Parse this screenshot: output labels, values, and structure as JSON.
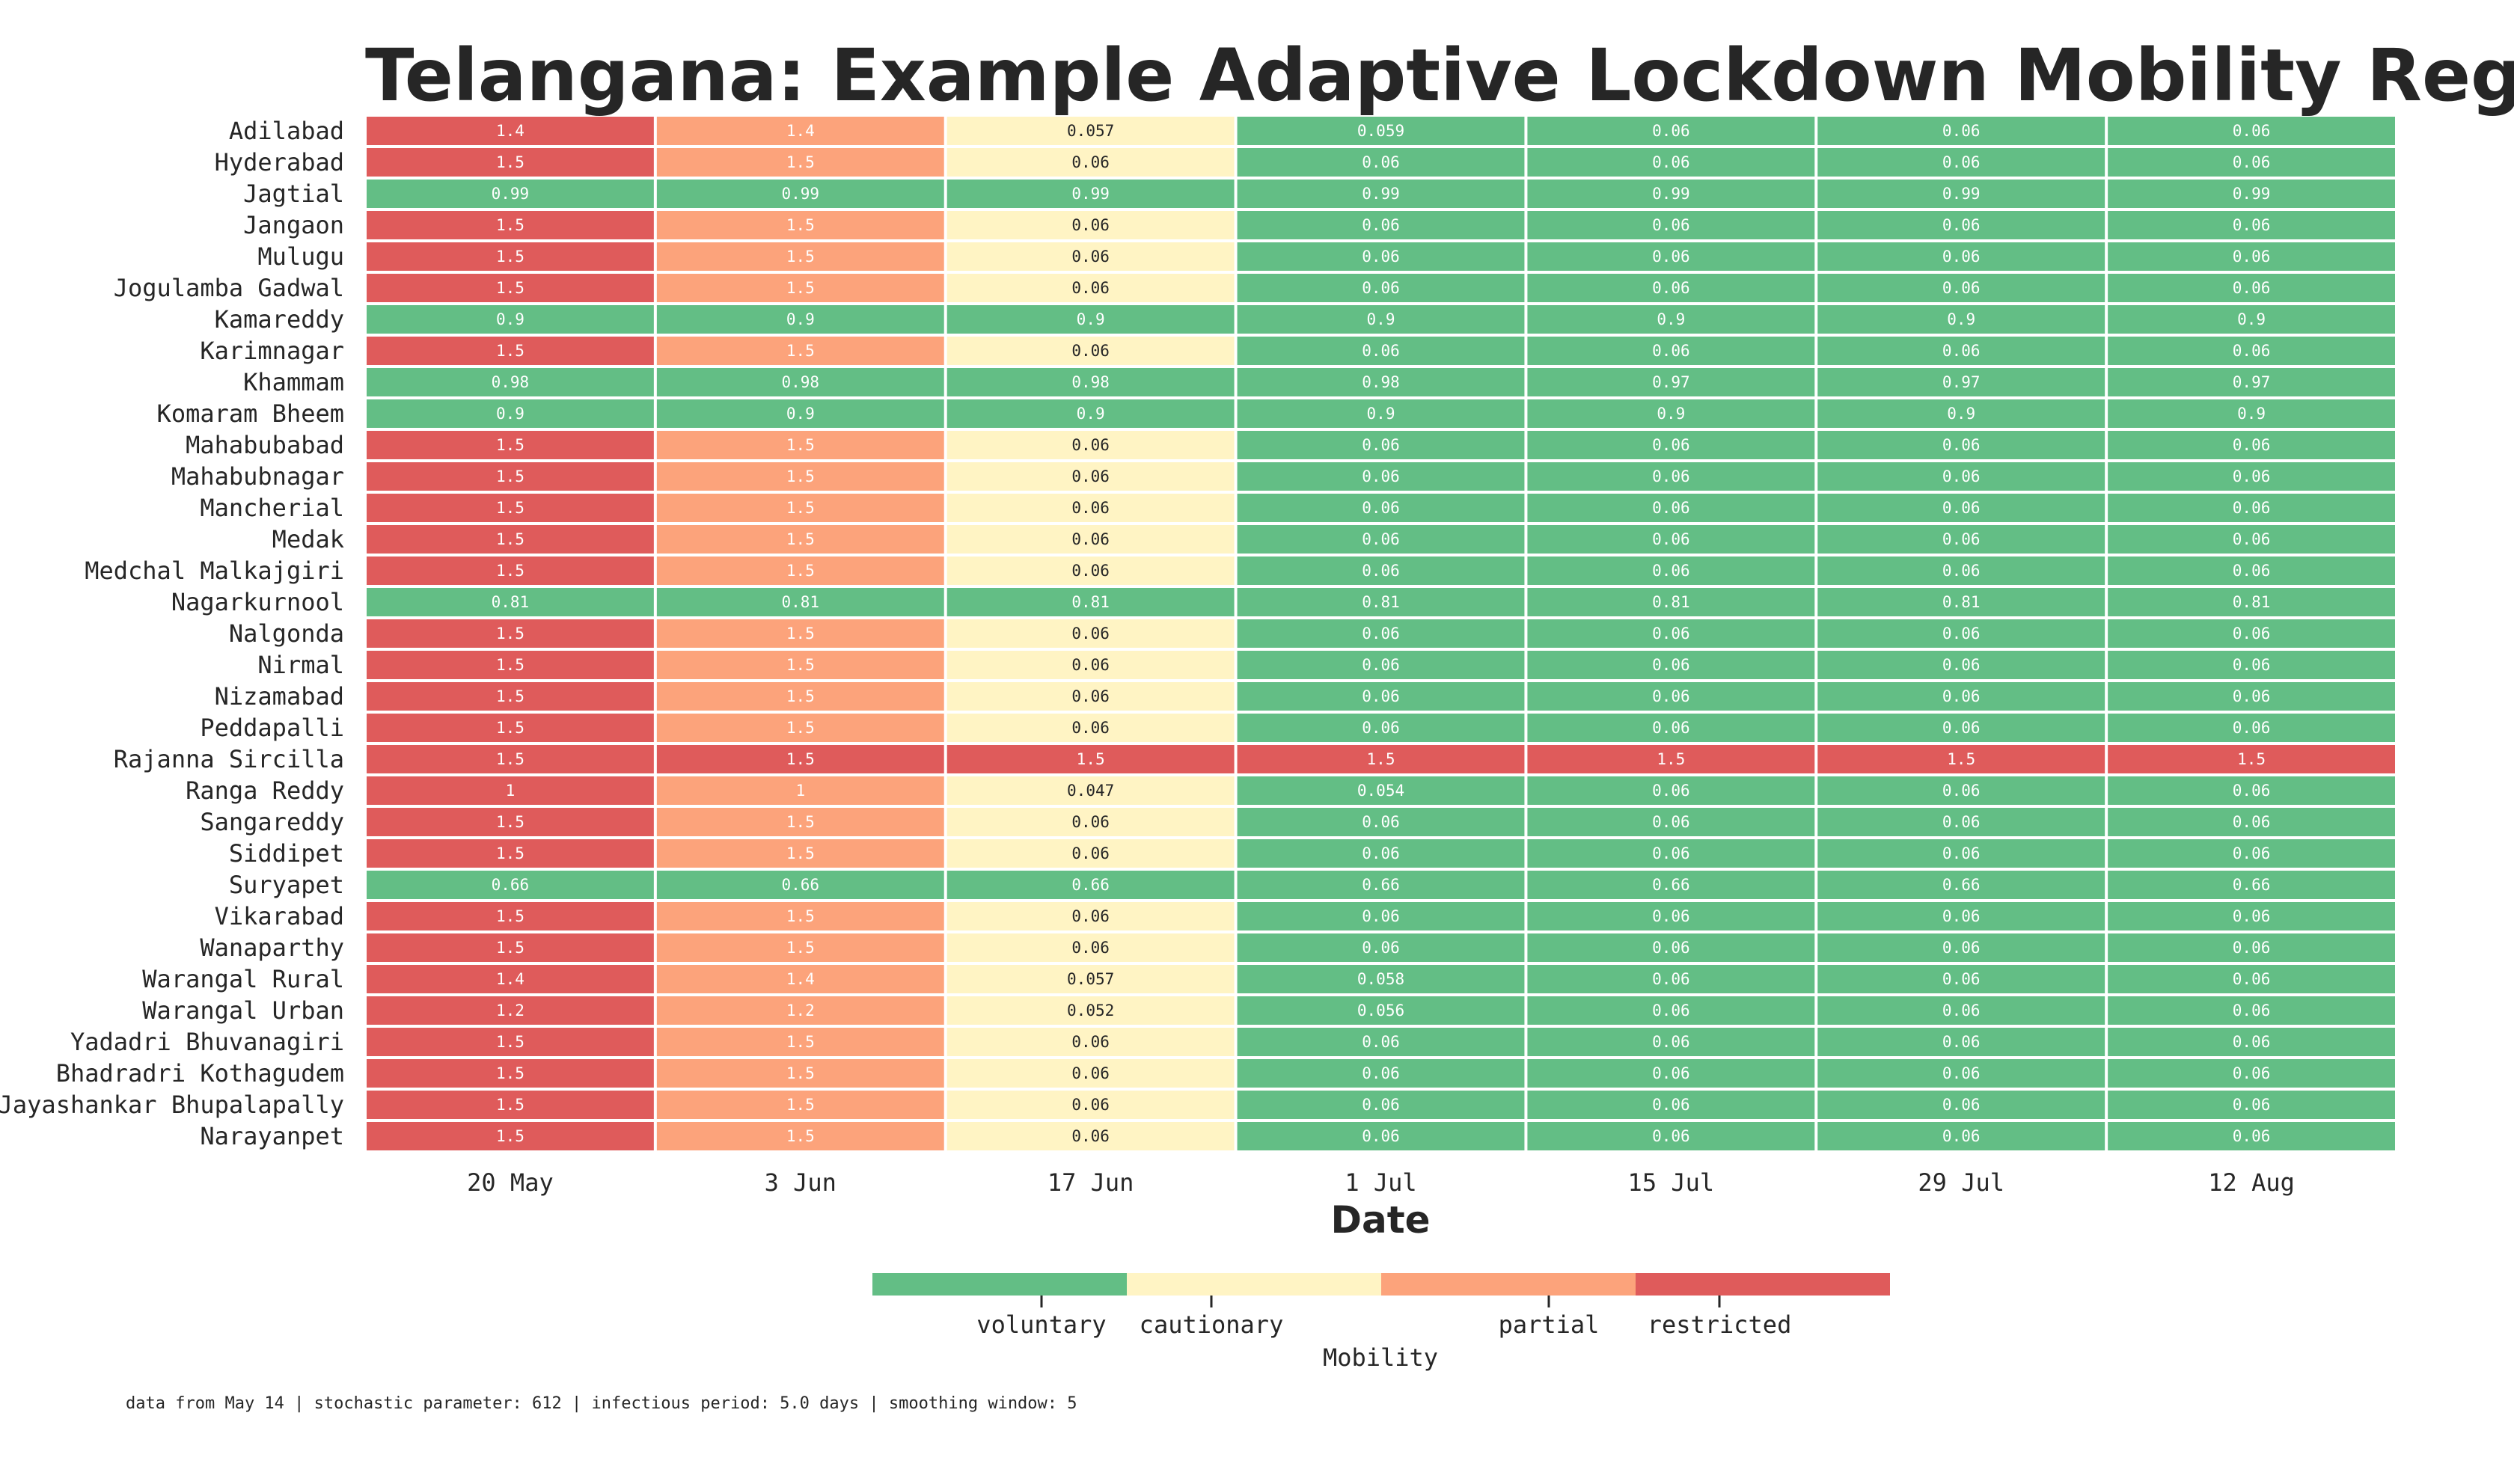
{
  "chart_data": {
    "type": "heatmap",
    "title": "Telangana: Example Adaptive Lockdown Mobility Regime Scenario",
    "xlabel": "Date",
    "dates": [
      "20 May",
      "3 Jun",
      "17 Jun",
      "1 Jul",
      "15 Jul",
      "29 Jul",
      "12 Aug"
    ],
    "districts": [
      "Adilabad",
      "Hyderabad",
      "Jagtial",
      "Jangaon",
      "Mulugu",
      "Jogulamba Gadwal",
      "Kamareddy",
      "Karimnagar",
      "Khammam",
      "Komaram Bheem",
      "Mahabubabad",
      "Mahabubnagar",
      "Mancherial",
      "Medak",
      "Medchal Malkajgiri",
      "Nagarkurnool",
      "Nalgonda",
      "Nirmal",
      "Nizamabad",
      "Peddapalli",
      "Rajanna Sircilla",
      "Ranga Reddy",
      "Sangareddy",
      "Siddipet",
      "Suryapet",
      "Vikarabad",
      "Wanaparthy",
      "Warangal Rural",
      "Warangal Urban",
      "Yadadri Bhuvanagiri",
      "Bhadradri Kothagudem",
      "Jayashankar Bhupalapally",
      "Narayanpet"
    ],
    "values": [
      [
        "1.4",
        "1.4",
        "0.057",
        "0.059",
        "0.06",
        "0.06",
        "0.06"
      ],
      [
        "1.5",
        "1.5",
        "0.06",
        "0.06",
        "0.06",
        "0.06",
        "0.06"
      ],
      [
        "0.99",
        "0.99",
        "0.99",
        "0.99",
        "0.99",
        "0.99",
        "0.99"
      ],
      [
        "1.5",
        "1.5",
        "0.06",
        "0.06",
        "0.06",
        "0.06",
        "0.06"
      ],
      [
        "1.5",
        "1.5",
        "0.06",
        "0.06",
        "0.06",
        "0.06",
        "0.06"
      ],
      [
        "1.5",
        "1.5",
        "0.06",
        "0.06",
        "0.06",
        "0.06",
        "0.06"
      ],
      [
        "0.9",
        "0.9",
        "0.9",
        "0.9",
        "0.9",
        "0.9",
        "0.9"
      ],
      [
        "1.5",
        "1.5",
        "0.06",
        "0.06",
        "0.06",
        "0.06",
        "0.06"
      ],
      [
        "0.98",
        "0.98",
        "0.98",
        "0.98",
        "0.97",
        "0.97",
        "0.97"
      ],
      [
        "0.9",
        "0.9",
        "0.9",
        "0.9",
        "0.9",
        "0.9",
        "0.9"
      ],
      [
        "1.5",
        "1.5",
        "0.06",
        "0.06",
        "0.06",
        "0.06",
        "0.06"
      ],
      [
        "1.5",
        "1.5",
        "0.06",
        "0.06",
        "0.06",
        "0.06",
        "0.06"
      ],
      [
        "1.5",
        "1.5",
        "0.06",
        "0.06",
        "0.06",
        "0.06",
        "0.06"
      ],
      [
        "1.5",
        "1.5",
        "0.06",
        "0.06",
        "0.06",
        "0.06",
        "0.06"
      ],
      [
        "1.5",
        "1.5",
        "0.06",
        "0.06",
        "0.06",
        "0.06",
        "0.06"
      ],
      [
        "0.81",
        "0.81",
        "0.81",
        "0.81",
        "0.81",
        "0.81",
        "0.81"
      ],
      [
        "1.5",
        "1.5",
        "0.06",
        "0.06",
        "0.06",
        "0.06",
        "0.06"
      ],
      [
        "1.5",
        "1.5",
        "0.06",
        "0.06",
        "0.06",
        "0.06",
        "0.06"
      ],
      [
        "1.5",
        "1.5",
        "0.06",
        "0.06",
        "0.06",
        "0.06",
        "0.06"
      ],
      [
        "1.5",
        "1.5",
        "0.06",
        "0.06",
        "0.06",
        "0.06",
        "0.06"
      ],
      [
        "1.5",
        "1.5",
        "1.5",
        "1.5",
        "1.5",
        "1.5",
        "1.5"
      ],
      [
        "1",
        "1",
        "0.047",
        "0.054",
        "0.06",
        "0.06",
        "0.06"
      ],
      [
        "1.5",
        "1.5",
        "0.06",
        "0.06",
        "0.06",
        "0.06",
        "0.06"
      ],
      [
        "1.5",
        "1.5",
        "0.06",
        "0.06",
        "0.06",
        "0.06",
        "0.06"
      ],
      [
        "0.66",
        "0.66",
        "0.66",
        "0.66",
        "0.66",
        "0.66",
        "0.66"
      ],
      [
        "1.5",
        "1.5",
        "0.06",
        "0.06",
        "0.06",
        "0.06",
        "0.06"
      ],
      [
        "1.5",
        "1.5",
        "0.06",
        "0.06",
        "0.06",
        "0.06",
        "0.06"
      ],
      [
        "1.4",
        "1.4",
        "0.057",
        "0.058",
        "0.06",
        "0.06",
        "0.06"
      ],
      [
        "1.2",
        "1.2",
        "0.052",
        "0.056",
        "0.06",
        "0.06",
        "0.06"
      ],
      [
        "1.5",
        "1.5",
        "0.06",
        "0.06",
        "0.06",
        "0.06",
        "0.06"
      ],
      [
        "1.5",
        "1.5",
        "0.06",
        "0.06",
        "0.06",
        "0.06",
        "0.06"
      ],
      [
        "1.5",
        "1.5",
        "0.06",
        "0.06",
        "0.06",
        "0.06",
        "0.06"
      ],
      [
        "1.5",
        "1.5",
        "0.06",
        "0.06",
        "0.06",
        "0.06",
        "0.06"
      ]
    ],
    "regimes": [
      [
        "restricted",
        "partial",
        "cautionary",
        "voluntary",
        "voluntary",
        "voluntary",
        "voluntary"
      ],
      [
        "restricted",
        "partial",
        "cautionary",
        "voluntary",
        "voluntary",
        "voluntary",
        "voluntary"
      ],
      [
        "voluntary",
        "voluntary",
        "voluntary",
        "voluntary",
        "voluntary",
        "voluntary",
        "voluntary"
      ],
      [
        "restricted",
        "partial",
        "cautionary",
        "voluntary",
        "voluntary",
        "voluntary",
        "voluntary"
      ],
      [
        "restricted",
        "partial",
        "cautionary",
        "voluntary",
        "voluntary",
        "voluntary",
        "voluntary"
      ],
      [
        "restricted",
        "partial",
        "cautionary",
        "voluntary",
        "voluntary",
        "voluntary",
        "voluntary"
      ],
      [
        "voluntary",
        "voluntary",
        "voluntary",
        "voluntary",
        "voluntary",
        "voluntary",
        "voluntary"
      ],
      [
        "restricted",
        "partial",
        "cautionary",
        "voluntary",
        "voluntary",
        "voluntary",
        "voluntary"
      ],
      [
        "voluntary",
        "voluntary",
        "voluntary",
        "voluntary",
        "voluntary",
        "voluntary",
        "voluntary"
      ],
      [
        "voluntary",
        "voluntary",
        "voluntary",
        "voluntary",
        "voluntary",
        "voluntary",
        "voluntary"
      ],
      [
        "restricted",
        "partial",
        "cautionary",
        "voluntary",
        "voluntary",
        "voluntary",
        "voluntary"
      ],
      [
        "restricted",
        "partial",
        "cautionary",
        "voluntary",
        "voluntary",
        "voluntary",
        "voluntary"
      ],
      [
        "restricted",
        "partial",
        "cautionary",
        "voluntary",
        "voluntary",
        "voluntary",
        "voluntary"
      ],
      [
        "restricted",
        "partial",
        "cautionary",
        "voluntary",
        "voluntary",
        "voluntary",
        "voluntary"
      ],
      [
        "restricted",
        "partial",
        "cautionary",
        "voluntary",
        "voluntary",
        "voluntary",
        "voluntary"
      ],
      [
        "voluntary",
        "voluntary",
        "voluntary",
        "voluntary",
        "voluntary",
        "voluntary",
        "voluntary"
      ],
      [
        "restricted",
        "partial",
        "cautionary",
        "voluntary",
        "voluntary",
        "voluntary",
        "voluntary"
      ],
      [
        "restricted",
        "partial",
        "cautionary",
        "voluntary",
        "voluntary",
        "voluntary",
        "voluntary"
      ],
      [
        "restricted",
        "partial",
        "cautionary",
        "voluntary",
        "voluntary",
        "voluntary",
        "voluntary"
      ],
      [
        "restricted",
        "partial",
        "cautionary",
        "voluntary",
        "voluntary",
        "voluntary",
        "voluntary"
      ],
      [
        "restricted",
        "restricted",
        "restricted",
        "restricted",
        "restricted",
        "restricted",
        "restricted"
      ],
      [
        "restricted",
        "partial",
        "cautionary",
        "voluntary",
        "voluntary",
        "voluntary",
        "voluntary"
      ],
      [
        "restricted",
        "partial",
        "cautionary",
        "voluntary",
        "voluntary",
        "voluntary",
        "voluntary"
      ],
      [
        "restricted",
        "partial",
        "cautionary",
        "voluntary",
        "voluntary",
        "voluntary",
        "voluntary"
      ],
      [
        "voluntary",
        "voluntary",
        "voluntary",
        "voluntary",
        "voluntary",
        "voluntary",
        "voluntary"
      ],
      [
        "restricted",
        "partial",
        "cautionary",
        "voluntary",
        "voluntary",
        "voluntary",
        "voluntary"
      ],
      [
        "restricted",
        "partial",
        "cautionary",
        "voluntary",
        "voluntary",
        "voluntary",
        "voluntary"
      ],
      [
        "restricted",
        "partial",
        "cautionary",
        "voluntary",
        "voluntary",
        "voluntary",
        "voluntary"
      ],
      [
        "restricted",
        "partial",
        "cautionary",
        "voluntary",
        "voluntary",
        "voluntary",
        "voluntary"
      ],
      [
        "restricted",
        "partial",
        "cautionary",
        "voluntary",
        "voluntary",
        "voluntary",
        "voluntary"
      ],
      [
        "restricted",
        "partial",
        "cautionary",
        "voluntary",
        "voluntary",
        "voluntary",
        "voluntary"
      ],
      [
        "restricted",
        "partial",
        "cautionary",
        "voluntary",
        "voluntary",
        "voluntary",
        "voluntary"
      ],
      [
        "restricted",
        "partial",
        "cautionary",
        "voluntary",
        "voluntary",
        "voluntary",
        "voluntary"
      ]
    ],
    "legend": {
      "title": "Mobility",
      "categories": [
        "voluntary",
        "cautionary",
        "partial",
        "restricted"
      ],
      "placement": "bottom-center"
    },
    "colors": {
      "voluntary": "#63be85",
      "cautionary": "#fff4c4",
      "partial": "#fca37b",
      "restricted": "#df5b5b"
    }
  },
  "footer": {
    "caption": "data from May 14 | stochastic parameter: 612 | infectious period: 5.0 days | smoothing window: 5"
  }
}
